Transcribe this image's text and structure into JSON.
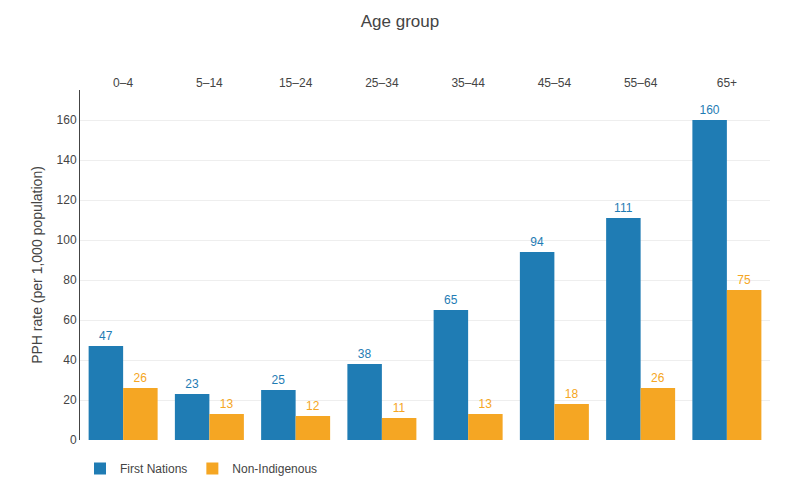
{
  "chart_data": {
    "type": "bar",
    "title": "Age group",
    "ylabel": "PPH rate (per 1,000 population)",
    "categories": [
      "0–4",
      "5–14",
      "15–24",
      "25–34",
      "35–44",
      "45–54",
      "55–64",
      "65+"
    ],
    "series": [
      {
        "name": "First Nations",
        "color": "#1f7cb4",
        "values": [
          47,
          23,
          25,
          38,
          65,
          94,
          111,
          160
        ]
      },
      {
        "name": "Non-Indigenous",
        "color": "#f5a623",
        "values": [
          26,
          13,
          12,
          11,
          13,
          18,
          26,
          75
        ]
      }
    ],
    "ylim": [
      0,
      175
    ],
    "yticks": [
      0,
      20,
      40,
      60,
      80,
      100,
      120,
      140,
      160
    ],
    "grid": true,
    "legend": "lower left",
    "data_labels": true
  }
}
